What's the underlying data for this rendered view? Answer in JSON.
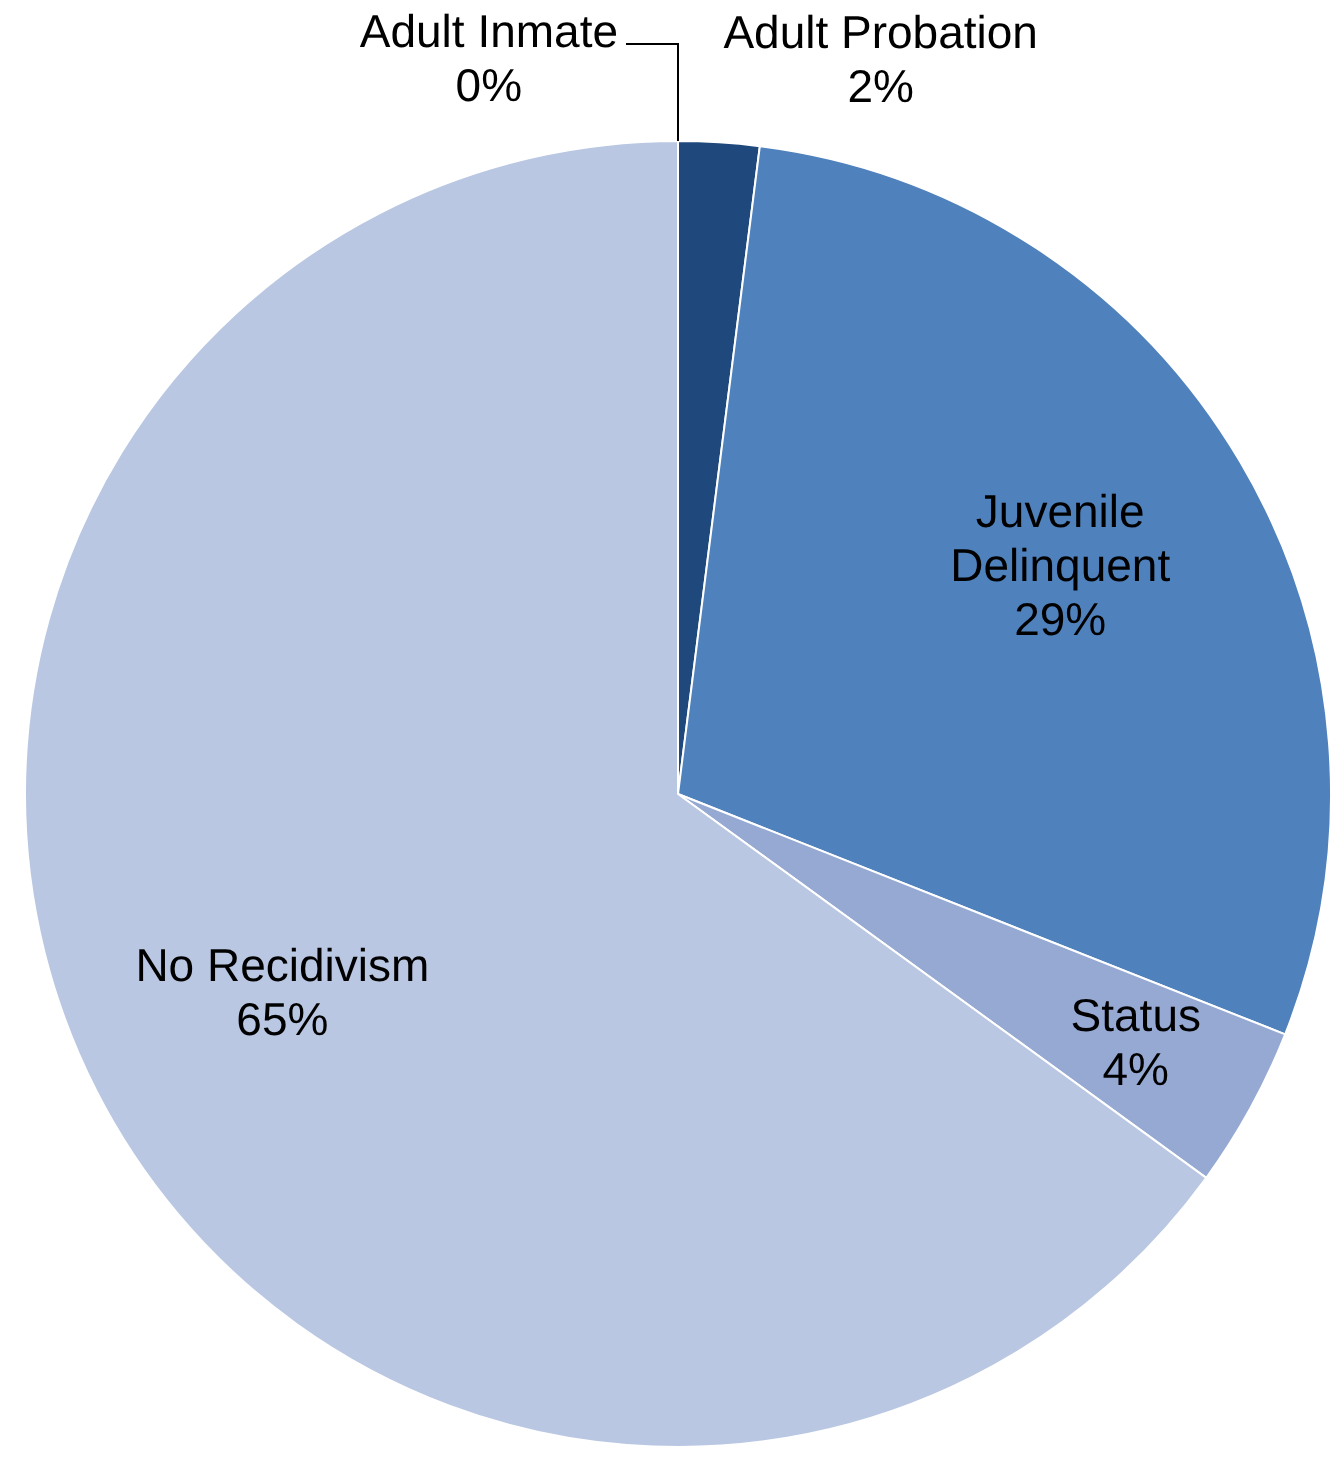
{
  "chart_data": {
    "type": "pie",
    "categories": [
      "Adult Inmate",
      "Adult Probation",
      "Juvenile Delinquent",
      "Status",
      "No Recidivism"
    ],
    "values": [
      0,
      2,
      29,
      4,
      65
    ],
    "colors": [
      "#1f3864",
      "#1f497d",
      "#4f81bd",
      "#95a9d3",
      "#b9c7e2"
    ],
    "value_labels": [
      "0%",
      "2%",
      "29%",
      "4%",
      "65%"
    ],
    "legend": false
  }
}
